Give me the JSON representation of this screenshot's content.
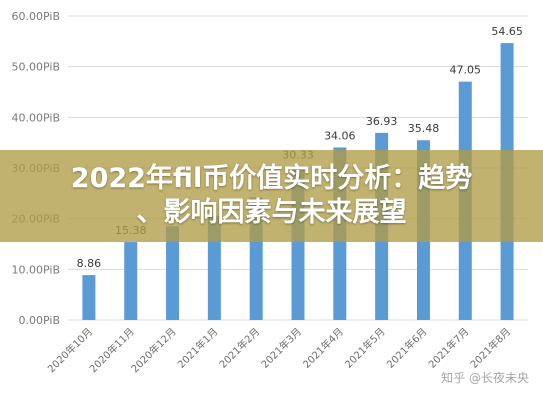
{
  "overlay": {
    "title_line1": "2022年fil币价值实时分析：趋势",
    "title_line2": "、影响因素与未来展望"
  },
  "watermark": {
    "text": "知乎 @长夜未央"
  },
  "colors": {
    "bar": "#5b9bd5",
    "grid": "#d9d9d9",
    "overlay": "#b09c46"
  },
  "chart_data": {
    "type": "bar",
    "title": "",
    "xlabel": "",
    "ylabel": "",
    "y_unit": "PiB",
    "y_ticks": [
      "0.00PiB",
      "10.00PiB",
      "20.00PiB",
      "30.00PiB",
      "40.00PiB",
      "50.00PiB",
      "60.00PiB"
    ],
    "ylim": [
      0,
      60
    ],
    "grid": true,
    "categories": [
      "2020年10月",
      "2020年11月",
      "2020年12月",
      "2021年1月",
      "2021年2月",
      "2021年3月",
      "2021年4月",
      "2021年5月",
      "2021年6月",
      "2021年7月",
      "2021年8月"
    ],
    "values": [
      8.86,
      15.38,
      18.5,
      20.5,
      24.2,
      30.33,
      34.06,
      36.93,
      35.48,
      47.05,
      54.65
    ],
    "value_labels": [
      "8.86",
      "15.38",
      "",
      "",
      "",
      "30.33",
      "34.06",
      "36.93",
      "35.48",
      "47.05",
      "54.65"
    ]
  }
}
